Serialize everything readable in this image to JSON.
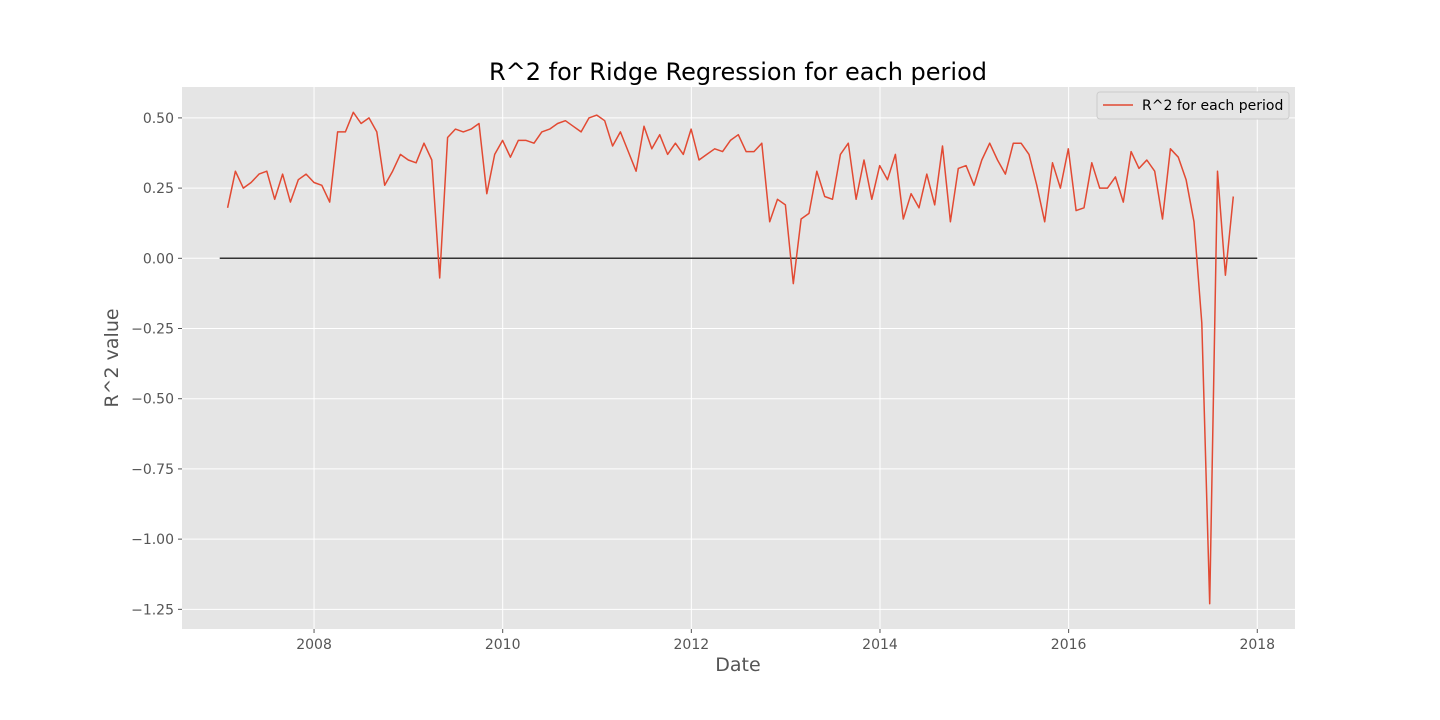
{
  "chart_data": {
    "type": "line",
    "title": "R^2 for Ridge Regression for each period",
    "xlabel": "Date",
    "ylabel": "R^2 value",
    "xlim": [
      2006.6,
      2018.4
    ],
    "ylim": [
      -1.32,
      0.61
    ],
    "x_ticks": [
      2008,
      2010,
      2012,
      2014,
      2016,
      2018
    ],
    "x_tick_labels": [
      "2008",
      "2010",
      "2012",
      "2014",
      "2016",
      "2018"
    ],
    "y_ticks": [
      0.5,
      0.25,
      0.0,
      -0.25,
      -0.5,
      -0.75,
      -1.0,
      -1.25
    ],
    "y_tick_labels": [
      "0.50",
      "0.25",
      "0.00",
      "−0.25",
      "−0.50",
      "−0.75",
      "−1.00",
      "−1.25"
    ],
    "grid": true,
    "legend_position": "top-right",
    "hline": {
      "y": 0.0,
      "x_start": 2007.0,
      "x_end": 2018.0,
      "color": "#333333"
    },
    "series": [
      {
        "name": "R^2 for each period",
        "color": "#e24a33",
        "start_year": 2007.083,
        "step_years": 0.0833,
        "values": [
          0.18,
          0.31,
          0.25,
          0.27,
          0.3,
          0.31,
          0.21,
          0.3,
          0.2,
          0.28,
          0.3,
          0.27,
          0.26,
          0.2,
          0.45,
          0.45,
          0.52,
          0.48,
          0.5,
          0.45,
          0.26,
          0.31,
          0.37,
          0.35,
          0.34,
          0.41,
          0.35,
          -0.07,
          0.43,
          0.46,
          0.45,
          0.46,
          0.48,
          0.23,
          0.37,
          0.42,
          0.36,
          0.42,
          0.42,
          0.41,
          0.45,
          0.46,
          0.48,
          0.49,
          0.47,
          0.45,
          0.5,
          0.51,
          0.49,
          0.4,
          0.45,
          0.38,
          0.31,
          0.47,
          0.39,
          0.44,
          0.37,
          0.41,
          0.37,
          0.46,
          0.35,
          0.37,
          0.39,
          0.38,
          0.42,
          0.44,
          0.38,
          0.38,
          0.41,
          0.13,
          0.21,
          0.19,
          -0.09,
          0.14,
          0.16,
          0.31,
          0.22,
          0.21,
          0.37,
          0.41,
          0.21,
          0.35,
          0.21,
          0.33,
          0.28,
          0.37,
          0.14,
          0.23,
          0.18,
          0.3,
          0.19,
          0.4,
          0.13,
          0.32,
          0.33,
          0.26,
          0.35,
          0.41,
          0.35,
          0.3,
          0.41,
          0.41,
          0.37,
          0.26,
          0.13,
          0.34,
          0.25,
          0.39,
          0.17,
          0.18,
          0.34,
          0.25,
          0.25,
          0.29,
          0.2,
          0.38,
          0.32,
          0.35,
          0.31,
          0.14,
          0.39,
          0.36,
          0.28,
          0.13,
          -0.23,
          -1.23,
          0.31,
          -0.06,
          0.22
        ]
      }
    ]
  }
}
